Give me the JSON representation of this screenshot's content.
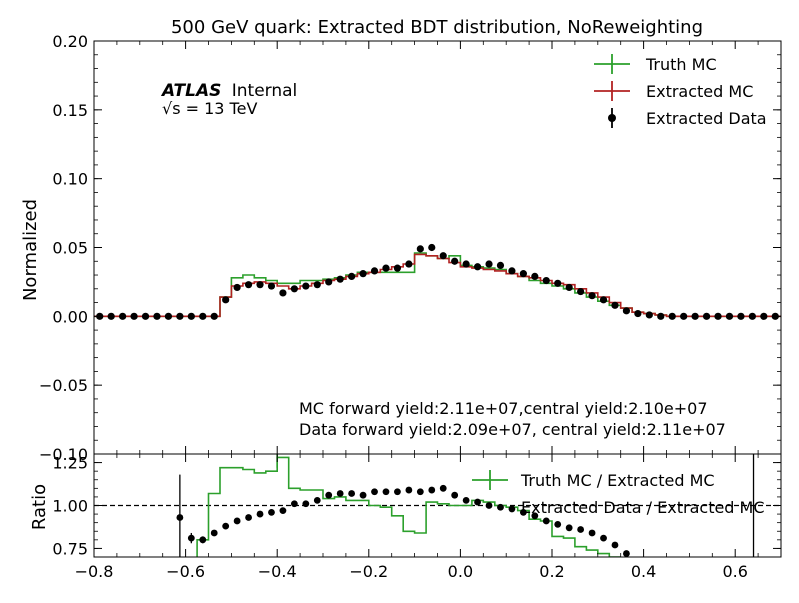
{
  "chart_data": [
    {
      "type": "line",
      "title": "500 GeV quark: Extracted BDT distribution, NoReweighting",
      "xlabel": "",
      "ylabel": "Normalized",
      "xlim": [
        -0.8,
        0.7
      ],
      "ylim": [
        -0.1,
        0.2
      ],
      "yticks": [
        "0.20",
        "0.15",
        "0.10",
        "0.05",
        "0.00",
        "−0.05",
        "−0.10"
      ],
      "grid": false,
      "legend_position": "top-right",
      "legend": [
        "Truth MC",
        "Extracted MC",
        "Extracted Data"
      ],
      "atlas_label": {
        "bold": "ATLAS",
        "text": "Internal",
        "energy": "√s = 13 TeV"
      },
      "annotations": [
        "MC forward yield:2.11e+07,central yield:2.10e+07",
        "Data forward yield:2.09e+07, central yield:2.11e+07"
      ],
      "bin_edges": [
        -0.8,
        -0.775,
        -0.75,
        -0.725,
        -0.7,
        -0.675,
        -0.65,
        -0.625,
        -0.6,
        -0.575,
        -0.55,
        -0.525,
        -0.5,
        -0.475,
        -0.45,
        -0.425,
        -0.4,
        -0.375,
        -0.35,
        -0.325,
        -0.3,
        -0.275,
        -0.25,
        -0.225,
        -0.2,
        -0.175,
        -0.15,
        -0.125,
        -0.1,
        -0.075,
        -0.05,
        -0.025,
        0.0,
        0.025,
        0.05,
        0.075,
        0.1,
        0.125,
        0.15,
        0.175,
        0.2,
        0.225,
        0.25,
        0.275,
        0.3,
        0.325,
        0.35,
        0.375,
        0.4,
        0.425,
        0.45,
        0.475,
        0.5,
        0.525,
        0.55,
        0.575,
        0.6,
        0.625,
        0.65,
        0.675,
        0.7
      ],
      "series": [
        {
          "name": "Truth MC",
          "style": "step",
          "color": "#2ca02c",
          "values": [
            0,
            0,
            0,
            0,
            0,
            0,
            0,
            0,
            0,
            0,
            0,
            0.014,
            0.028,
            0.03,
            0.028,
            0.026,
            0.024,
            0.024,
            0.026,
            0.026,
            0.027,
            0.028,
            0.03,
            0.032,
            0.032,
            0.032,
            0.032,
            0.032,
            0.046,
            0.044,
            0.042,
            0.044,
            0.037,
            0.036,
            0.035,
            0.034,
            0.031,
            0.029,
            0.026,
            0.024,
            0.022,
            0.02,
            0.017,
            0.014,
            0.011,
            0.008,
            0.006,
            0.003,
            0.002,
            0.001,
            0,
            0,
            0,
            0,
            0,
            0,
            0,
            0,
            0,
            0
          ]
        },
        {
          "name": "Extracted MC",
          "style": "step",
          "color": "#b22222",
          "values": [
            0,
            0,
            0,
            0,
            0,
            0,
            0,
            0,
            0,
            0,
            0,
            0.014,
            0.022,
            0.024,
            0.025,
            0.024,
            0.022,
            0.02,
            0.022,
            0.024,
            0.026,
            0.027,
            0.029,
            0.031,
            0.032,
            0.034,
            0.036,
            0.038,
            0.045,
            0.044,
            0.042,
            0.039,
            0.036,
            0.035,
            0.034,
            0.033,
            0.031,
            0.029,
            0.028,
            0.026,
            0.024,
            0.023,
            0.02,
            0.017,
            0.014,
            0.01,
            0.006,
            0.003,
            0.002,
            0.001,
            0,
            0,
            0,
            0,
            0,
            0,
            0,
            0,
            0,
            0
          ]
        },
        {
          "name": "Extracted Data",
          "style": "errorbar",
          "color": "#000000",
          "values": [
            0,
            0,
            0,
            0,
            0,
            0,
            0,
            0,
            0,
            0,
            0,
            0.012,
            0.021,
            0.023,
            0.023,
            0.022,
            0.017,
            0.02,
            0.022,
            0.023,
            0.025,
            0.027,
            0.029,
            0.031,
            0.033,
            0.035,
            0.035,
            0.038,
            0.049,
            0.05,
            0.044,
            0.04,
            0.038,
            0.036,
            0.038,
            0.037,
            0.033,
            0.031,
            0.029,
            0.026,
            0.024,
            0.021,
            0.018,
            0.015,
            0.012,
            0.008,
            0.004,
            0.002,
            0.001,
            0,
            0,
            0,
            0,
            0,
            0,
            0,
            0,
            0,
            0,
            0
          ]
        }
      ]
    },
    {
      "type": "line",
      "title": "",
      "xlabel": "",
      "ylabel": "Ratio",
      "xlim": [
        -0.8,
        0.7
      ],
      "ylim": [
        0.7,
        1.3
      ],
      "reference_line": 1.0,
      "xticks": [
        "−0.8",
        "−0.6",
        "−0.4",
        "−0.2",
        "0.0",
        "0.2",
        "0.4",
        "0.6"
      ],
      "yticks": [
        "1.25",
        "1.00",
        "0.75"
      ],
      "legend_position": "top-right",
      "legend": [
        "Truth MC / Extracted MC",
        "Extracted Data / Extracted MC"
      ],
      "series": [
        {
          "name": "Truth MC / Extracted MC",
          "style": "step",
          "color": "#2ca02c",
          "x_start": -0.575,
          "values": [
            0.8,
            1.07,
            1.22,
            1.22,
            1.21,
            1.19,
            1.2,
            1.28,
            1.1,
            1.09,
            1.09,
            1.04,
            1.05,
            1.03,
            1.03,
            1.0,
            0.99,
            0.94,
            0.85,
            0.84,
            1.02,
            1.01,
            1.0,
            1.0,
            1.03,
            1.02,
            1.0,
            0.99,
            0.97,
            0.92,
            0.91,
            0.82,
            0.81,
            0.76,
            0.74,
            0.72,
            0.7
          ]
        },
        {
          "name": "Extracted Data / Extracted MC",
          "style": "errorbar",
          "color": "#000000",
          "x": [
            -0.6125,
            -0.5875,
            -0.5625,
            -0.5375,
            -0.5125,
            -0.4875,
            -0.4625,
            -0.4375,
            -0.4125,
            -0.3875,
            -0.3625,
            -0.3375,
            -0.3125,
            -0.2875,
            -0.2625,
            -0.2375,
            -0.2125,
            -0.1875,
            -0.1625,
            -0.1375,
            -0.1125,
            -0.0875,
            -0.0625,
            -0.0375,
            -0.0125,
            0.0125,
            0.0375,
            0.0625,
            0.0875,
            0.1125,
            0.1375,
            0.1625,
            0.1875,
            0.2125,
            0.2375,
            0.2625,
            0.2875,
            0.3125,
            0.3375,
            0.3625
          ],
          "values": [
            0.93,
            0.81,
            0.8,
            0.84,
            0.88,
            0.91,
            0.93,
            0.95,
            0.96,
            0.97,
            1.01,
            1.01,
            1.03,
            1.06,
            1.07,
            1.07,
            1.06,
            1.08,
            1.08,
            1.08,
            1.09,
            1.08,
            1.09,
            1.1,
            1.06,
            1.03,
            1.02,
            1.0,
            0.99,
            0.98,
            0.96,
            0.94,
            0.91,
            0.89,
            0.87,
            0.86,
            0.84,
            0.81,
            0.77,
            0.72
          ],
          "errors": [
            0.25,
            0.03,
            0.02,
            0.015,
            0.01,
            0.01,
            0.01,
            0.01,
            0.01,
            0.01,
            0.01,
            0.01,
            0.01,
            0.01,
            0.01,
            0.01,
            0.01,
            0.01,
            0.01,
            0.01,
            0.01,
            0.01,
            0.01,
            0.01,
            0.01,
            0.01,
            0.01,
            0.01,
            0.01,
            0.01,
            0.01,
            0.01,
            0.01,
            0.01,
            0.01,
            0.01,
            0.01,
            0.01,
            0.01,
            0.01
          ]
        }
      ]
    }
  ]
}
